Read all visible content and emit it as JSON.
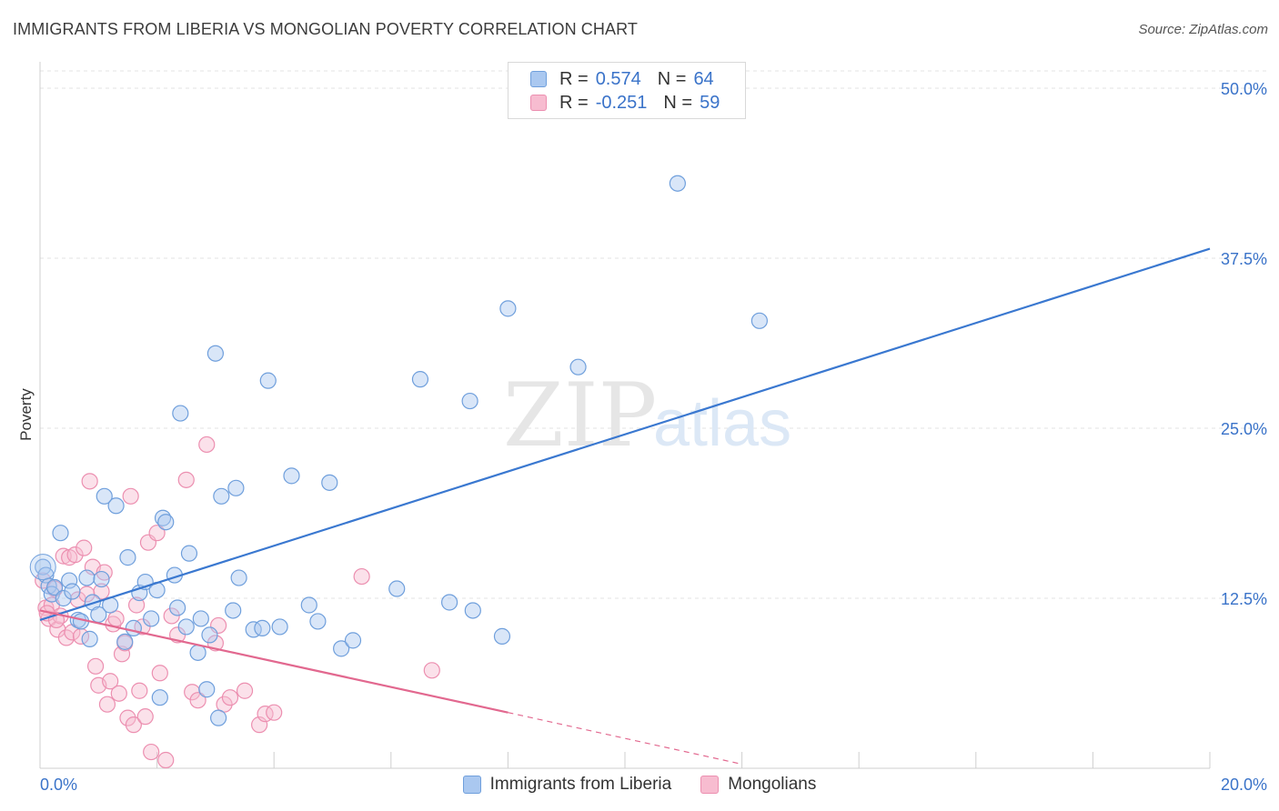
{
  "header": {
    "title": "IMMIGRANTS FROM LIBERIA VS MONGOLIAN POVERTY CORRELATION CHART",
    "source": "Source: ZipAtlas.com"
  },
  "watermark": {
    "zip": "ZIP",
    "atlas": "atlas"
  },
  "legend": {
    "rows": [
      {
        "r_label": "R =",
        "r_value": "0.574",
        "n_label": "N =",
        "n_value": "64"
      },
      {
        "r_label": "R =",
        "r_value": "-0.251",
        "n_label": "N =",
        "n_value": "59"
      }
    ]
  },
  "colors": {
    "blue_fill": "#aac8f0",
    "blue_stroke": "#6f9fdc",
    "blue_line": "#3a78d0",
    "pink_fill": "#f7bcd0",
    "pink_stroke": "#ec8fb0",
    "pink_line": "#e2688f",
    "grid": "#e3e3e3",
    "tick_label": "#3a73c9"
  },
  "chart_data": {
    "type": "scatter",
    "xlabel": "",
    "ylabel": "Poverty",
    "xlim": [
      0,
      20
    ],
    "ylim": [
      0,
      50
    ],
    "x_tick_labels": [
      {
        "value": 0,
        "label": "0.0%"
      },
      {
        "value": 20,
        "label": "20.0%"
      }
    ],
    "y_tick_labels": [
      {
        "value": 12.5,
        "label": "12.5%"
      },
      {
        "value": 25,
        "label": "25.0%"
      },
      {
        "value": 37.5,
        "label": "37.5%"
      },
      {
        "value": 50,
        "label": "50.0%"
      }
    ],
    "grid": true,
    "legend_position": "top-center",
    "series": [
      {
        "name": "Immigrants from Liberia",
        "color": "blue",
        "trend": {
          "x0": 0,
          "y0": 10.9,
          "x1": 20,
          "y1": 38.2
        },
        "points": [
          [
            0.05,
            14.8
          ],
          [
            0.1,
            14.2
          ],
          [
            0.15,
            13.4
          ],
          [
            0.2,
            12.8
          ],
          [
            0.25,
            13.3
          ],
          [
            0.35,
            17.3
          ],
          [
            0.4,
            12.5
          ],
          [
            0.5,
            13.8
          ],
          [
            0.55,
            13.0
          ],
          [
            0.65,
            10.9
          ],
          [
            0.7,
            10.8
          ],
          [
            0.8,
            14.0
          ],
          [
            0.85,
            9.5
          ],
          [
            0.9,
            12.2
          ],
          [
            1.0,
            11.3
          ],
          [
            1.05,
            13.9
          ],
          [
            1.1,
            20.0
          ],
          [
            1.2,
            12.0
          ],
          [
            1.3,
            19.3
          ],
          [
            1.45,
            9.3
          ],
          [
            1.5,
            15.5
          ],
          [
            1.6,
            10.3
          ],
          [
            1.7,
            12.9
          ],
          [
            1.8,
            13.7
          ],
          [
            1.9,
            11.0
          ],
          [
            2.0,
            13.1
          ],
          [
            2.05,
            5.2
          ],
          [
            2.1,
            18.4
          ],
          [
            2.15,
            18.1
          ],
          [
            2.3,
            14.2
          ],
          [
            2.35,
            11.8
          ],
          [
            2.4,
            26.1
          ],
          [
            2.5,
            10.4
          ],
          [
            2.55,
            15.8
          ],
          [
            2.7,
            8.5
          ],
          [
            2.75,
            11.0
          ],
          [
            2.85,
            5.8
          ],
          [
            2.9,
            9.8
          ],
          [
            3.0,
            30.5
          ],
          [
            3.05,
            3.7
          ],
          [
            3.1,
            20.0
          ],
          [
            3.3,
            11.6
          ],
          [
            3.35,
            20.6
          ],
          [
            3.4,
            14.0
          ],
          [
            3.65,
            10.2
          ],
          [
            3.8,
            10.3
          ],
          [
            3.9,
            28.5
          ],
          [
            4.1,
            10.4
          ],
          [
            4.3,
            21.5
          ],
          [
            4.6,
            12.0
          ],
          [
            4.75,
            10.8
          ],
          [
            4.95,
            21.0
          ],
          [
            5.15,
            8.8
          ],
          [
            5.35,
            9.4
          ],
          [
            6.1,
            13.2
          ],
          [
            6.5,
            28.6
          ],
          [
            7.0,
            12.2
          ],
          [
            7.35,
            27.0
          ],
          [
            7.4,
            11.6
          ],
          [
            7.9,
            9.7
          ],
          [
            8.0,
            33.8
          ],
          [
            9.2,
            29.5
          ],
          [
            10.9,
            43.0
          ],
          [
            12.3,
            32.9
          ]
        ]
      },
      {
        "name": "Mongolians",
        "color": "pink",
        "trend": {
          "x0": 0,
          "y0": 11.6,
          "x1": 8.0,
          "y1": 4.1,
          "dash_x1": 12.0,
          "dash_y1": 0.3
        },
        "points": [
          [
            0.05,
            13.8
          ],
          [
            0.1,
            11.8
          ],
          [
            0.15,
            11.0
          ],
          [
            0.2,
            12.0
          ],
          [
            0.25,
            13.2
          ],
          [
            0.3,
            10.2
          ],
          [
            0.35,
            11.2
          ],
          [
            0.4,
            15.6
          ],
          [
            0.45,
            9.6
          ],
          [
            0.5,
            15.5
          ],
          [
            0.55,
            10.0
          ],
          [
            0.6,
            15.7
          ],
          [
            0.65,
            12.4
          ],
          [
            0.7,
            9.7
          ],
          [
            0.75,
            16.2
          ],
          [
            0.8,
            12.8
          ],
          [
            0.85,
            21.1
          ],
          [
            0.9,
            14.8
          ],
          [
            0.95,
            7.5
          ],
          [
            1.0,
            6.1
          ],
          [
            1.05,
            13.0
          ],
          [
            1.1,
            14.4
          ],
          [
            1.15,
            4.7
          ],
          [
            1.2,
            6.4
          ],
          [
            1.25,
            10.6
          ],
          [
            1.3,
            11.0
          ],
          [
            1.35,
            5.5
          ],
          [
            1.4,
            8.4
          ],
          [
            1.45,
            9.2
          ],
          [
            1.5,
            3.7
          ],
          [
            1.55,
            20.0
          ],
          [
            1.6,
            3.2
          ],
          [
            1.65,
            12.0
          ],
          [
            1.7,
            5.7
          ],
          [
            1.75,
            10.4
          ],
          [
            1.8,
            3.8
          ],
          [
            1.85,
            16.6
          ],
          [
            1.9,
            1.2
          ],
          [
            2.0,
            17.3
          ],
          [
            2.05,
            7.0
          ],
          [
            2.15,
            0.6
          ],
          [
            2.25,
            11.2
          ],
          [
            2.35,
            9.8
          ],
          [
            2.5,
            21.2
          ],
          [
            2.6,
            5.6
          ],
          [
            2.7,
            5.0
          ],
          [
            2.85,
            23.8
          ],
          [
            3.0,
            9.2
          ],
          [
            3.05,
            10.5
          ],
          [
            3.15,
            4.7
          ],
          [
            3.25,
            5.2
          ],
          [
            3.5,
            5.7
          ],
          [
            3.75,
            3.2
          ],
          [
            3.85,
            4.0
          ],
          [
            4.0,
            4.1
          ],
          [
            5.5,
            14.1
          ],
          [
            6.7,
            7.2
          ],
          [
            0.12,
            11.4
          ],
          [
            0.28,
            10.9
          ]
        ]
      }
    ]
  }
}
